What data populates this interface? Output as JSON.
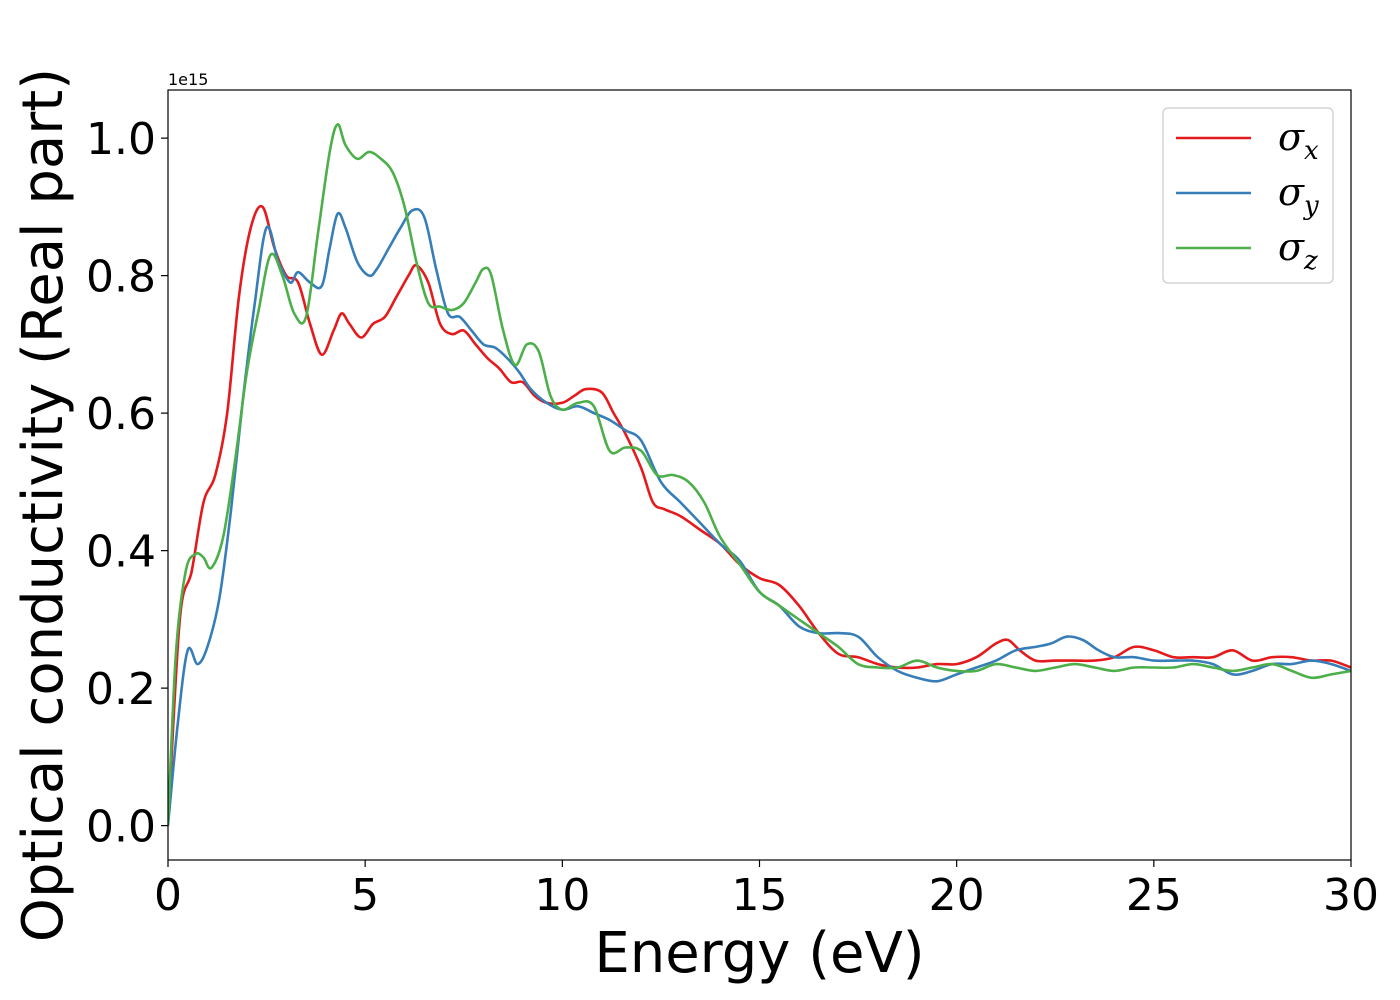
{
  "chart_data": {
    "type": "line",
    "xlabel": "Energy (eV)",
    "ylabel": "Optical conductivity (Real part)",
    "y_offset_text": "1e15",
    "xlim": [
      0,
      30
    ],
    "ylim": [
      -0.05,
      1.07
    ],
    "x_ticks": [
      0,
      5,
      10,
      15,
      20,
      25,
      30
    ],
    "x_tick_labels": [
      "0",
      "5",
      "10",
      "15",
      "20",
      "25",
      "30"
    ],
    "y_ticks": [
      0.0,
      0.2,
      0.4,
      0.6,
      0.8,
      1.0
    ],
    "y_tick_labels": [
      "0.0",
      "0.2",
      "0.4",
      "0.6",
      "0.8",
      "1.0"
    ],
    "grid": false,
    "legend_position": "top-right",
    "series": [
      {
        "name": "σx",
        "symbol": "σ",
        "subscript": "x",
        "color": "#e41a1c",
        "x": [
          0,
          0.3,
          0.6,
          0.9,
          1.2,
          1.5,
          1.8,
          2.1,
          2.4,
          2.7,
          3.0,
          3.3,
          3.6,
          3.9,
          4.2,
          4.4,
          4.6,
          4.9,
          5.2,
          5.5,
          5.8,
          6.1,
          6.3,
          6.6,
          6.9,
          7.2,
          7.5,
          7.8,
          8.1,
          8.4,
          8.7,
          9.0,
          9.3,
          9.6,
          10.0,
          10.3,
          10.6,
          11.0,
          11.3,
          11.6,
          12.0,
          12.3,
          12.6,
          13.0,
          13.5,
          14.0,
          14.5,
          15.0,
          15.5,
          16.0,
          16.5,
          17.0,
          17.5,
          18.0,
          18.5,
          19.0,
          19.5,
          20.0,
          20.5,
          21.0,
          21.3,
          21.6,
          22.0,
          22.5,
          23.0,
          23.5,
          24.0,
          24.5,
          25.0,
          25.5,
          26.0,
          26.5,
          27.0,
          27.5,
          28.0,
          28.5,
          29.0,
          29.5,
          30.0
        ],
        "values": [
          0.0,
          0.3,
          0.37,
          0.47,
          0.51,
          0.6,
          0.77,
          0.87,
          0.9,
          0.84,
          0.8,
          0.79,
          0.73,
          0.685,
          0.72,
          0.745,
          0.73,
          0.71,
          0.73,
          0.74,
          0.77,
          0.8,
          0.815,
          0.79,
          0.73,
          0.715,
          0.72,
          0.7,
          0.68,
          0.665,
          0.645,
          0.645,
          0.625,
          0.615,
          0.615,
          0.625,
          0.635,
          0.63,
          0.6,
          0.57,
          0.52,
          0.47,
          0.46,
          0.45,
          0.43,
          0.41,
          0.38,
          0.36,
          0.35,
          0.32,
          0.28,
          0.25,
          0.245,
          0.235,
          0.23,
          0.23,
          0.235,
          0.235,
          0.245,
          0.265,
          0.27,
          0.255,
          0.24,
          0.24,
          0.24,
          0.24,
          0.245,
          0.26,
          0.255,
          0.245,
          0.245,
          0.245,
          0.255,
          0.24,
          0.245,
          0.245,
          0.24,
          0.24,
          0.23
        ]
      },
      {
        "name": "σy",
        "symbol": "σ",
        "subscript": "y",
        "color": "#377eb8",
        "x": [
          0,
          0.25,
          0.5,
          0.75,
          1.0,
          1.3,
          1.6,
          1.9,
          2.2,
          2.5,
          2.8,
          3.1,
          3.3,
          3.6,
          3.9,
          4.1,
          4.3,
          4.5,
          4.8,
          5.1,
          5.3,
          5.6,
          5.9,
          6.2,
          6.5,
          6.8,
          7.1,
          7.4,
          7.7,
          8.0,
          8.3,
          8.6,
          8.9,
          9.2,
          9.6,
          10.0,
          10.4,
          10.8,
          11.2,
          11.6,
          12.0,
          12.5,
          13.0,
          13.5,
          14.0,
          14.5,
          15.0,
          15.5,
          16.0,
          16.5,
          17.0,
          17.5,
          18.0,
          18.5,
          19.0,
          19.5,
          20.0,
          20.5,
          21.0,
          21.5,
          22.0,
          22.4,
          22.8,
          23.2,
          23.6,
          24.0,
          24.5,
          25.0,
          25.5,
          26.0,
          26.5,
          27.0,
          27.5,
          28.0,
          28.5,
          29.0,
          29.5,
          30.0
        ],
        "values": [
          0.0,
          0.15,
          0.255,
          0.235,
          0.26,
          0.33,
          0.46,
          0.62,
          0.76,
          0.87,
          0.82,
          0.79,
          0.805,
          0.79,
          0.785,
          0.84,
          0.89,
          0.87,
          0.82,
          0.8,
          0.81,
          0.84,
          0.87,
          0.895,
          0.885,
          0.81,
          0.745,
          0.74,
          0.72,
          0.7,
          0.695,
          0.68,
          0.66,
          0.635,
          0.615,
          0.605,
          0.61,
          0.6,
          0.59,
          0.575,
          0.56,
          0.5,
          0.47,
          0.44,
          0.41,
          0.385,
          0.34,
          0.32,
          0.29,
          0.28,
          0.28,
          0.275,
          0.245,
          0.225,
          0.215,
          0.21,
          0.22,
          0.23,
          0.24,
          0.255,
          0.26,
          0.265,
          0.275,
          0.27,
          0.255,
          0.245,
          0.245,
          0.24,
          0.24,
          0.24,
          0.235,
          0.22,
          0.225,
          0.235,
          0.235,
          0.24,
          0.235,
          0.225
        ]
      },
      {
        "name": "σz",
        "symbol": "σ",
        "subscript": "z",
        "color": "#4daf4a",
        "x": [
          0,
          0.2,
          0.45,
          0.7,
          0.9,
          1.1,
          1.4,
          1.7,
          2.0,
          2.3,
          2.6,
          2.9,
          3.2,
          3.5,
          3.8,
          4.1,
          4.3,
          4.5,
          4.8,
          5.1,
          5.4,
          5.7,
          6.0,
          6.3,
          6.6,
          6.9,
          7.2,
          7.5,
          7.8,
          8.0,
          8.2,
          8.5,
          8.8,
          9.1,
          9.4,
          9.7,
          10.0,
          10.4,
          10.8,
          11.2,
          11.6,
          12.0,
          12.4,
          12.8,
          13.2,
          13.6,
          14.0,
          14.5,
          15.0,
          15.5,
          16.0,
          16.5,
          17.0,
          17.5,
          18.0,
          18.5,
          19.0,
          19.5,
          20.0,
          20.5,
          21.0,
          21.5,
          22.0,
          22.5,
          23.0,
          23.5,
          24.0,
          24.5,
          25.0,
          25.5,
          26.0,
          26.5,
          27.0,
          27.5,
          28.0,
          28.5,
          29.0,
          29.5,
          30.0
        ],
        "values": [
          0.0,
          0.25,
          0.37,
          0.395,
          0.39,
          0.375,
          0.42,
          0.53,
          0.66,
          0.75,
          0.83,
          0.8,
          0.745,
          0.74,
          0.86,
          0.98,
          1.02,
          0.99,
          0.97,
          0.98,
          0.97,
          0.95,
          0.9,
          0.82,
          0.76,
          0.755,
          0.75,
          0.76,
          0.79,
          0.81,
          0.8,
          0.72,
          0.67,
          0.7,
          0.69,
          0.625,
          0.605,
          0.615,
          0.61,
          0.545,
          0.55,
          0.545,
          0.51,
          0.51,
          0.5,
          0.47,
          0.42,
          0.38,
          0.34,
          0.32,
          0.3,
          0.28,
          0.26,
          0.235,
          0.23,
          0.23,
          0.24,
          0.23,
          0.225,
          0.225,
          0.235,
          0.23,
          0.225,
          0.23,
          0.235,
          0.23,
          0.225,
          0.23,
          0.23,
          0.23,
          0.235,
          0.23,
          0.225,
          0.23,
          0.235,
          0.225,
          0.215,
          0.22,
          0.225
        ]
      }
    ]
  }
}
